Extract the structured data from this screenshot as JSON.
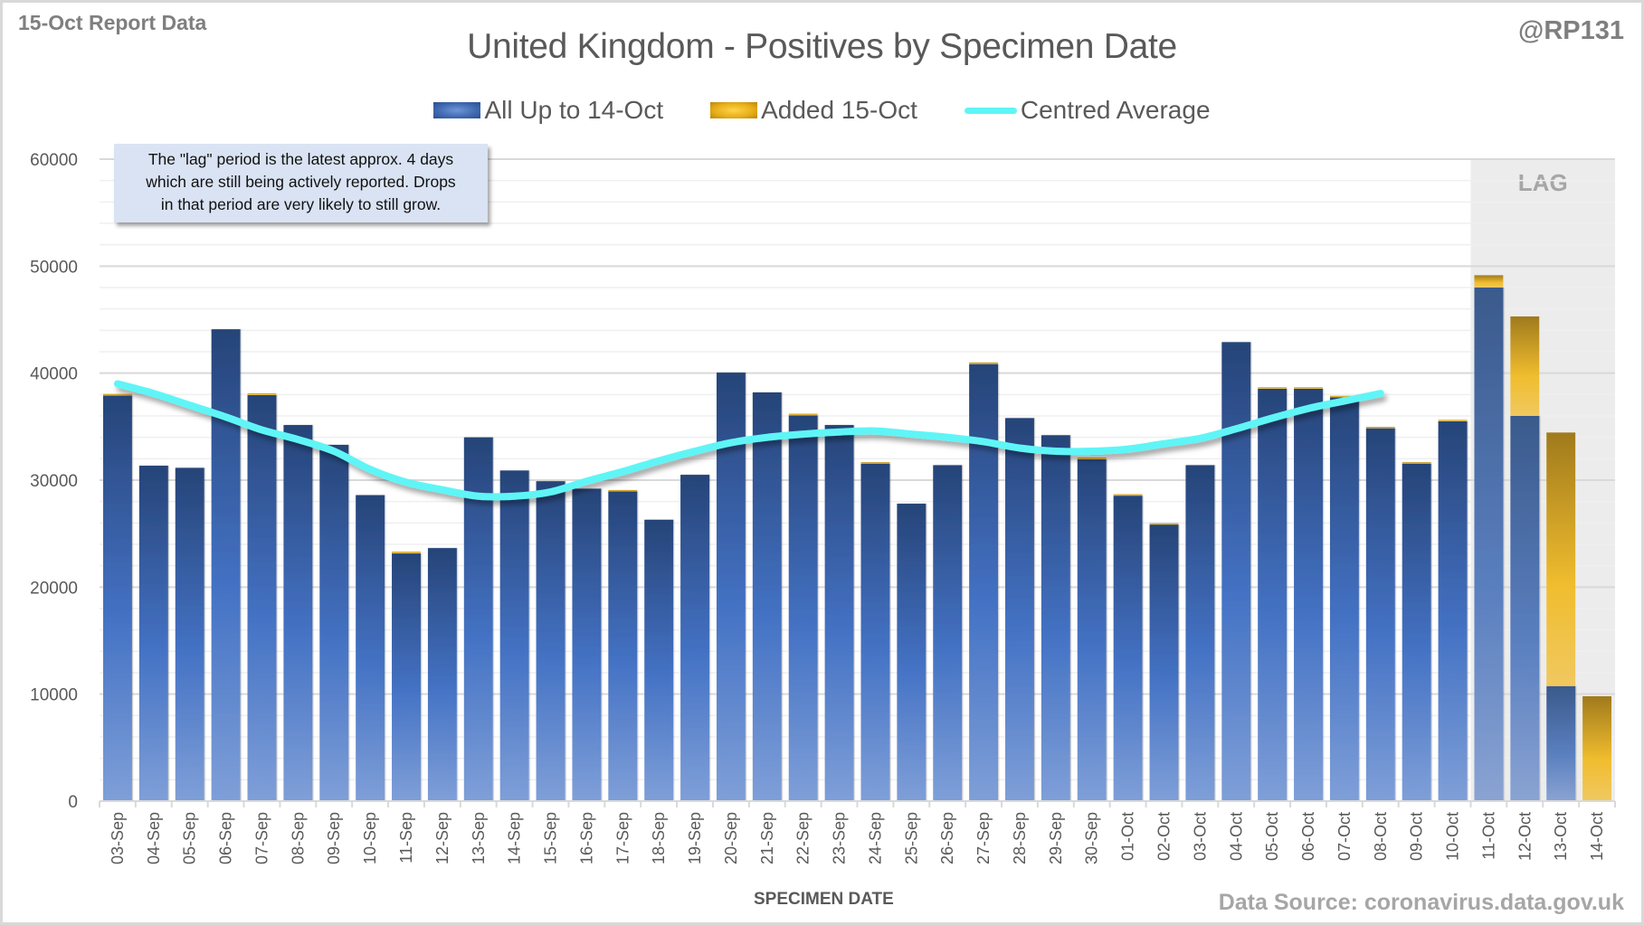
{
  "header": {
    "report_label": "15-Oct Report Data",
    "handle": "@RP131"
  },
  "annotation": {
    "lines": [
      "The \"lag\" period is the latest approx. 4 days",
      "which are still being actively reported. Drops",
      "in that period are very likely to still grow."
    ]
  },
  "footer": {
    "source": "Data Source: coronavirus.data.gov.uk"
  },
  "colors": {
    "base_series_dark": "#264478",
    "base_series_light": "#7f9fd8",
    "added_series_dark": "#a07a1c",
    "added_series_light": "#f0c030",
    "average_line": "#5ff5f6",
    "lag_shade": "#ececec",
    "gridline": "#d9d9d9"
  },
  "chart_data": {
    "type": "bar",
    "stacked": true,
    "title": "United Kingdom - Positives by Specimen Date",
    "xlabel": "SPECIMEN DATE",
    "ylabel": "",
    "ylim": [
      0,
      60000
    ],
    "yticks": [
      0,
      10000,
      20000,
      30000,
      40000,
      50000,
      60000
    ],
    "minor_grid_step": 2000,
    "grid": true,
    "legend_position": "top",
    "lag_label": "LAG",
    "lag_categories": [
      "11-Oct",
      "12-Oct",
      "13-Oct",
      "14-Oct"
    ],
    "categories": [
      "03-Sep",
      "04-Sep",
      "05-Sep",
      "06-Sep",
      "07-Sep",
      "08-Sep",
      "09-Sep",
      "10-Sep",
      "11-Sep",
      "12-Sep",
      "13-Sep",
      "14-Sep",
      "15-Sep",
      "16-Sep",
      "17-Sep",
      "18-Sep",
      "19-Sep",
      "20-Sep",
      "21-Sep",
      "22-Sep",
      "23-Sep",
      "24-Sep",
      "25-Sep",
      "26-Sep",
      "27-Sep",
      "28-Sep",
      "29-Sep",
      "30-Sep",
      "01-Oct",
      "02-Oct",
      "03-Oct",
      "04-Oct",
      "05-Oct",
      "06-Oct",
      "07-Oct",
      "08-Oct",
      "09-Oct",
      "10-Oct",
      "11-Oct",
      "12-Oct",
      "13-Oct",
      "14-Oct"
    ],
    "series": [
      {
        "name": "All Up to 14-Oct",
        "kind": "bar",
        "values": [
          37900,
          31350,
          31150,
          44100,
          37950,
          35150,
          33300,
          28600,
          23150,
          23650,
          34000,
          30900,
          29900,
          29200,
          28950,
          26300,
          30500,
          40050,
          38200,
          36050,
          35150,
          31550,
          27800,
          31400,
          40850,
          35800,
          34200,
          31950,
          28550,
          25850,
          31400,
          42900,
          38550,
          38550,
          37750,
          34850,
          31550,
          35500,
          48000,
          36000,
          10750,
          0
        ]
      },
      {
        "name": "Added 15-Oct",
        "kind": "bar",
        "values": [
          150,
          0,
          0,
          0,
          150,
          0,
          0,
          0,
          150,
          0,
          0,
          0,
          0,
          0,
          100,
          0,
          0,
          0,
          0,
          150,
          0,
          100,
          0,
          0,
          150,
          0,
          0,
          150,
          100,
          100,
          0,
          0,
          100,
          100,
          100,
          100,
          100,
          100,
          1150,
          9300,
          23700,
          9800
        ]
      },
      {
        "name": "Centred Average",
        "kind": "line",
        "values": [
          39000,
          38100,
          37000,
          35900,
          34700,
          33800,
          32700,
          31000,
          29800,
          29100,
          28500,
          28500,
          28900,
          29900,
          30800,
          31800,
          32700,
          33500,
          34000,
          34300,
          34500,
          34600,
          34300,
          34000,
          33600,
          33000,
          32700,
          32700,
          32900,
          33400,
          33900,
          34800,
          35800,
          36700,
          37400,
          38100,
          null,
          null,
          null,
          null,
          null,
          null
        ]
      }
    ]
  }
}
